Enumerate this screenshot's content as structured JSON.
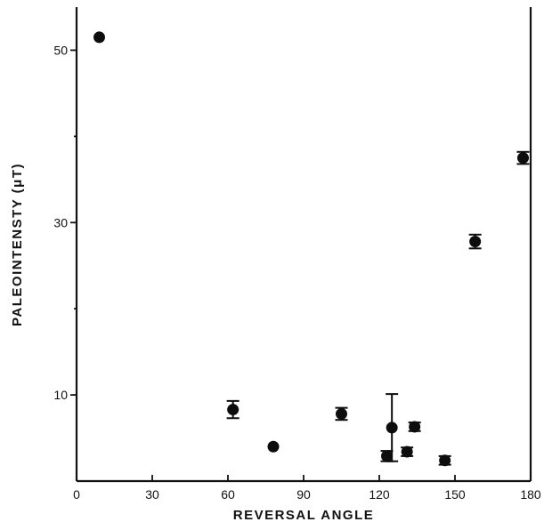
{
  "chart_data": {
    "type": "scatter",
    "title": "",
    "xlabel": "REVERSAL ANGLE",
    "ylabel": "PALEOINTENSTY (μT)",
    "xlim": [
      0,
      180
    ],
    "ylim": [
      0,
      55
    ],
    "xticks": [
      0,
      30,
      60,
      90,
      120,
      150,
      180
    ],
    "yticks_labeled": [
      10,
      30,
      50
    ],
    "yticks_minor": [
      20,
      40
    ],
    "grid": false,
    "legend": "none",
    "points": [
      {
        "x": 9,
        "y": 51.5,
        "err": 0
      },
      {
        "x": 62,
        "y": 8.3,
        "err": 1.0
      },
      {
        "x": 78,
        "y": 4.0,
        "err": 0
      },
      {
        "x": 105,
        "y": 7.8,
        "err": 0.7
      },
      {
        "x": 123,
        "y": 2.9,
        "err": 0.6
      },
      {
        "x": 125,
        "y": 6.2,
        "err": 3.9
      },
      {
        "x": 131,
        "y": 3.4,
        "err": 0.5
      },
      {
        "x": 134,
        "y": 6.3,
        "err": 0.5
      },
      {
        "x": 146,
        "y": 2.4,
        "err": 0.5
      },
      {
        "x": 158,
        "y": 27.8,
        "err": 0.8
      },
      {
        "x": 177,
        "y": 37.5,
        "err": 0.7
      }
    ]
  }
}
